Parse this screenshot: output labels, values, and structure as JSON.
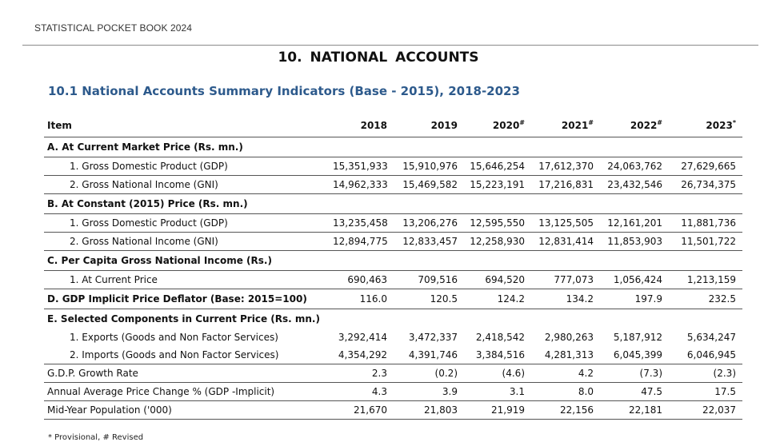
{
  "header": {
    "title": "STATISTICAL POCKET BOOK 2024"
  },
  "chapter": "10. NATIONAL   ACCOUNTS",
  "table_title": "10.1 National Accounts Summary Indicators (Base - 2015), 2018-2023",
  "columns": {
    "item": "Item",
    "years": [
      {
        "label": "2018",
        "mark": ""
      },
      {
        "label": "2019",
        "mark": ""
      },
      {
        "label": "2020",
        "mark": "#"
      },
      {
        "label": "2021",
        "mark": "#"
      },
      {
        "label": "2022",
        "mark": "#"
      },
      {
        "label": "2023",
        "mark": "*"
      }
    ]
  },
  "sections": {
    "a": "A. At Current Market Price (Rs. mn.)",
    "b": "B. At Constant (2015) Price (Rs. mn.)",
    "c": "C. Per Capita Gross National Income (Rs.)",
    "d": "D. GDP Implicit Price Deflator (Base: 2015=100)",
    "e": "E.  Selected Components in Current Price (Rs. mn.)"
  },
  "rows": {
    "a_gdp": {
      "label": "1. Gross Domestic Product (GDP)",
      "values": [
        "15,351,933",
        "15,910,976",
        "15,646,254",
        "17,612,370",
        "24,063,762",
        "27,629,665"
      ]
    },
    "a_gni": {
      "label": "2. Gross National  Income (GNI)",
      "values": [
        "14,962,333",
        "15,469,582",
        "15,223,191",
        "17,216,831",
        "23,432,546",
        "26,734,375"
      ]
    },
    "b_gdp": {
      "label": "1. Gross Domestic Product (GDP)",
      "values": [
        "13,235,458",
        "13,206,276",
        "12,595,550",
        "13,125,505",
        "12,161,201",
        "11,881,736"
      ]
    },
    "b_gni": {
      "label": "2. Gross National  Income (GNI)",
      "values": [
        "12,894,775",
        "12,833,457",
        "12,258,930",
        "12,831,414",
        "11,853,903",
        "11,501,722"
      ]
    },
    "c_cur": {
      "label": "1. At Current Price",
      "values": [
        "690,463",
        "709,516",
        "694,520",
        "777,073",
        "1,056,424",
        "1,213,159"
      ]
    },
    "d_def": {
      "values": [
        "116.0",
        "120.5",
        "124.2",
        "134.2",
        "197.9",
        "232.5"
      ]
    },
    "e_exp": {
      "label": "1. Exports (Goods and Non Factor Services)",
      "values": [
        "3,292,414",
        "3,472,337",
        "2,418,542",
        "2,980,263",
        "5,187,912",
        "5,634,247"
      ]
    },
    "e_imp": {
      "label": "2. Imports (Goods and Non Factor Services)",
      "values": [
        "4,354,292",
        "4,391,746",
        "3,384,516",
        "4,281,313",
        "6,045,399",
        "6,046,945"
      ]
    },
    "growth": {
      "label": "G.D.P. Growth Rate",
      "values": [
        "2.3",
        "(0.2)",
        "(4.6)",
        "4.2",
        "(7.3)",
        "(2.3)"
      ]
    },
    "price": {
      "label": "Annual Average Price Change % (GDP -Implicit)",
      "values": [
        "4.3",
        "3.9",
        "3.1",
        "8.0",
        "47.5",
        "17.5"
      ]
    },
    "pop": {
      "label": "Mid-Year Population ('000)",
      "values": [
        "21,670",
        "21,803",
        "21,919",
        "22,156",
        "22,181",
        "22,037"
      ]
    }
  },
  "footnote": "* Provisional,   # Revised"
}
